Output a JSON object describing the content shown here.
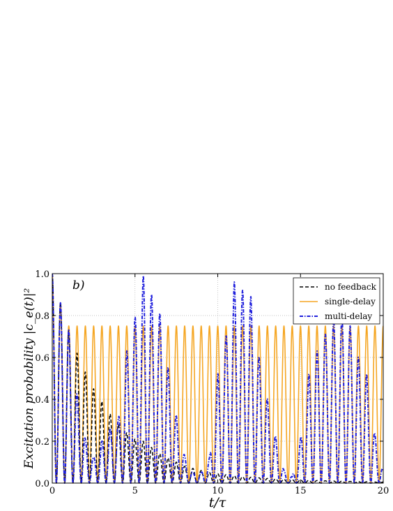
{
  "chart_data": {
    "type": "line",
    "panel_label": "b)",
    "xlabel": "t/τ",
    "ylabel": "Excitation probability |c_e(t)|²",
    "xlim": [
      0,
      20
    ],
    "ylim": [
      0,
      1.0
    ],
    "x_ticks": [
      0,
      5,
      10,
      15,
      20
    ],
    "y_ticks": [
      0.0,
      0.2,
      0.4,
      0.6,
      0.8,
      1.0
    ],
    "x_tick_labels": [
      "0",
      "5",
      "10",
      "15",
      "20"
    ],
    "y_tick_labels": [
      "0.0",
      "0.2",
      "0.4",
      "0.6",
      "0.8",
      "1.0"
    ],
    "grid": true,
    "legend_position": "top-right",
    "oscillation_period": 0.5,
    "series": [
      {
        "name": "no feedback",
        "style": "dashed",
        "color": "#000000",
        "peaks": [
          [
            0,
            1.0
          ],
          [
            0.5,
            0.86
          ],
          [
            1,
            0.73
          ],
          [
            1.5,
            0.62
          ],
          [
            2,
            0.53
          ],
          [
            2.5,
            0.45
          ],
          [
            3,
            0.39
          ],
          [
            3.5,
            0.33
          ],
          [
            4,
            0.28
          ],
          [
            4.5,
            0.24
          ],
          [
            5,
            0.21
          ],
          [
            5.5,
            0.2
          ],
          [
            6,
            0.17
          ],
          [
            6.5,
            0.14
          ],
          [
            7,
            0.12
          ],
          [
            7.5,
            0.1
          ],
          [
            8,
            0.08
          ],
          [
            8.5,
            0.07
          ],
          [
            9,
            0.06
          ],
          [
            9.5,
            0.05
          ],
          [
            10,
            0.045
          ],
          [
            10.5,
            0.04
          ],
          [
            11,
            0.035
          ],
          [
            11.5,
            0.03
          ],
          [
            12,
            0.028
          ],
          [
            12.5,
            0.025
          ],
          [
            13,
            0.022
          ],
          [
            13.5,
            0.02
          ],
          [
            14,
            0.018
          ],
          [
            14.5,
            0.016
          ],
          [
            15,
            0.015
          ],
          [
            15.5,
            0.013
          ],
          [
            16,
            0.012
          ],
          [
            16.5,
            0.011
          ],
          [
            17,
            0.01
          ],
          [
            17.5,
            0.009
          ],
          [
            18,
            0.008
          ],
          [
            18.5,
            0.007
          ],
          [
            19,
            0.006
          ],
          [
            19.5,
            0.005
          ],
          [
            20,
            0.005
          ]
        ]
      },
      {
        "name": "single-delay",
        "style": "solid",
        "color": "#f5a623",
        "peaks": [
          [
            0,
            1.0
          ],
          [
            0.5,
            0.86
          ],
          [
            1,
            0.75
          ],
          [
            1.5,
            0.75
          ],
          [
            2,
            0.75
          ],
          [
            2.5,
            0.75
          ],
          [
            3,
            0.75
          ],
          [
            3.5,
            0.75
          ],
          [
            4,
            0.75
          ],
          [
            4.5,
            0.75
          ],
          [
            5,
            0.75
          ],
          [
            5.5,
            0.75
          ],
          [
            6,
            0.75
          ],
          [
            6.5,
            0.75
          ],
          [
            7,
            0.75
          ],
          [
            7.5,
            0.75
          ],
          [
            8,
            0.75
          ],
          [
            8.5,
            0.75
          ],
          [
            9,
            0.75
          ],
          [
            9.5,
            0.75
          ],
          [
            10,
            0.75
          ],
          [
            10.5,
            0.75
          ],
          [
            11,
            0.75
          ],
          [
            11.5,
            0.75
          ],
          [
            12,
            0.75
          ],
          [
            12.5,
            0.75
          ],
          [
            13,
            0.75
          ],
          [
            13.5,
            0.75
          ],
          [
            14,
            0.75
          ],
          [
            14.5,
            0.75
          ],
          [
            15,
            0.75
          ],
          [
            15.5,
            0.75
          ],
          [
            16,
            0.75
          ],
          [
            16.5,
            0.75
          ],
          [
            17,
            0.75
          ],
          [
            17.5,
            0.75
          ],
          [
            18,
            0.75
          ],
          [
            18.5,
            0.75
          ],
          [
            19,
            0.75
          ],
          [
            19.5,
            0.75
          ],
          [
            20,
            0.75
          ]
        ]
      },
      {
        "name": "multi-delay",
        "style": "dashdot",
        "color": "#1f1fdc",
        "peaks": [
          [
            0,
            1.0
          ],
          [
            0.5,
            0.86
          ],
          [
            1,
            0.73
          ],
          [
            1.5,
            0.42
          ],
          [
            2,
            0.21
          ],
          [
            2.5,
            0.12
          ],
          [
            3,
            0.2
          ],
          [
            3.5,
            0.26
          ],
          [
            4,
            0.31
          ],
          [
            4.5,
            0.63
          ],
          [
            5,
            0.79
          ],
          [
            5.5,
            0.99
          ],
          [
            6,
            0.9
          ],
          [
            6.5,
            0.81
          ],
          [
            7,
            0.55
          ],
          [
            7.5,
            0.32
          ],
          [
            8,
            0.13
          ],
          [
            8.5,
            0.05
          ],
          [
            9,
            0.05
          ],
          [
            9.5,
            0.12
          ],
          [
            10,
            0.52
          ],
          [
            10.5,
            0.7
          ],
          [
            11,
            0.96
          ],
          [
            11.5,
            0.92
          ],
          [
            12,
            0.89
          ],
          [
            12.5,
            0.6
          ],
          [
            13,
            0.4
          ],
          [
            13.5,
            0.22
          ],
          [
            14,
            0.06
          ],
          [
            14.5,
            0.03
          ],
          [
            15,
            0.21
          ],
          [
            15.5,
            0.52
          ],
          [
            16,
            0.63
          ],
          [
            16.5,
            0.71
          ],
          [
            17,
            0.78
          ],
          [
            17.5,
            0.8
          ],
          [
            18,
            0.75
          ],
          [
            18.5,
            0.6
          ],
          [
            19,
            0.52
          ],
          [
            19.5,
            0.23
          ],
          [
            20,
            0.06
          ]
        ]
      }
    ]
  }
}
